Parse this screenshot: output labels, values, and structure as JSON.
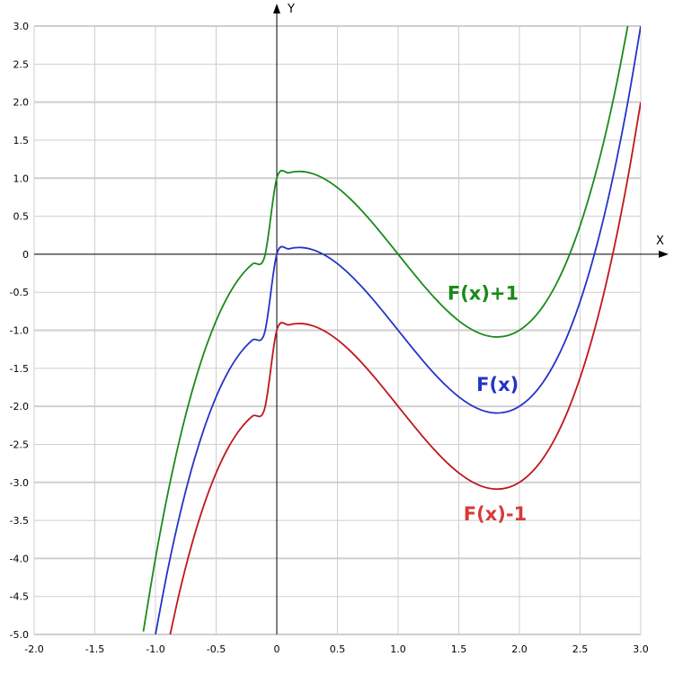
{
  "chart_data": {
    "type": "line",
    "title": "",
    "xlabel": "X",
    "ylabel": "Y",
    "xlim": [
      -2.0,
      3.0
    ],
    "ylim": [
      -5.0,
      3.0
    ],
    "grid": true,
    "x_ticks": [
      -2.0,
      -1.5,
      -1.0,
      -0.5,
      0,
      0.5,
      1.0,
      1.5,
      2.0,
      2.5,
      3.0
    ],
    "x_tick_labels": [
      "-2.0",
      "-1.5",
      "-1.0",
      "-0.5",
      "0",
      "0.5",
      "1.0",
      "1.5",
      "2.0",
      "2.5",
      "3.0"
    ],
    "y_ticks": [
      3.0,
      2.5,
      2.0,
      1.5,
      1.0,
      0.5,
      0,
      -0.5,
      -1.0,
      -1.5,
      -2.0,
      -2.5,
      -3.0,
      -3.5,
      -4.0,
      -4.5,
      -5.0
    ],
    "y_tick_labels": [
      "3.0",
      "2.5",
      "2.0",
      "1.5",
      "1.0",
      "0.5",
      "0",
      "-0.5",
      "-1.0",
      "-1.5",
      "-2.0",
      "-2.5",
      "-3.0",
      "-3.5",
      "-4.0",
      "-4.5",
      "-5.0"
    ],
    "series": [
      {
        "name": "F(x)+1",
        "color": "#1a8a1a",
        "label_color": "#1a8a1a",
        "x": [
          -1.1,
          -1.0,
          -0.9,
          -0.8,
          -0.7,
          -0.6,
          -0.5,
          -0.4,
          -0.3,
          -0.2,
          -0.1,
          0.0,
          0.1,
          0.2,
          0.3,
          0.4,
          0.5,
          0.6,
          0.7,
          0.8,
          0.9,
          1.0,
          1.1,
          1.2,
          1.3,
          1.4,
          1.5,
          1.6,
          1.7,
          1.8,
          1.9,
          2.0,
          2.1,
          2.2,
          2.3,
          2.4,
          2.5,
          2.6,
          2.7,
          2.8,
          2.9
        ],
        "y": [
          -4.961,
          -4.0,
          -3.159,
          -2.432,
          -1.813,
          -1.296,
          -0.875,
          -0.544,
          -0.297,
          -0.128,
          -0.031,
          1.0,
          1.071,
          1.088,
          1.057,
          0.984,
          0.875,
          0.736,
          0.573,
          0.392,
          0.199,
          0.0,
          -0.199,
          -0.392,
          -0.573,
          -0.736,
          -0.875,
          -0.984,
          -1.057,
          -1.088,
          -1.071,
          -1.0,
          -0.869,
          -0.672,
          -0.403,
          -0.056,
          0.375,
          0.896,
          1.513,
          2.232,
          3.059
        ]
      },
      {
        "name": "F(x)",
        "color": "#2433c8",
        "label_color": "#2433c8",
        "x": [
          -1.0,
          -0.9,
          -0.8,
          -0.7,
          -0.6,
          -0.5,
          -0.4,
          -0.3,
          -0.2,
          -0.1,
          0.0,
          0.1,
          0.2,
          0.3,
          0.4,
          0.5,
          0.6,
          0.7,
          0.8,
          0.9,
          1.0,
          1.1,
          1.2,
          1.3,
          1.4,
          1.5,
          1.6,
          1.7,
          1.8,
          1.9,
          2.0,
          2.1,
          2.2,
          2.3,
          2.4,
          2.5,
          2.6,
          2.7,
          2.8,
          2.9,
          3.0
        ],
        "y": [
          -5.0,
          -4.159,
          -3.432,
          -2.813,
          -2.296,
          -1.875,
          -1.544,
          -1.297,
          -1.128,
          -1.031,
          0.0,
          0.071,
          0.088,
          0.057,
          -0.016,
          -0.125,
          -0.264,
          -0.427,
          -0.608,
          -0.801,
          -1.0,
          -1.199,
          -1.392,
          -1.573,
          -1.736,
          -1.875,
          -1.984,
          -2.057,
          -2.088,
          -2.071,
          -2.0,
          -1.869,
          -1.672,
          -1.403,
          -1.056,
          -0.625,
          -0.104,
          0.513,
          1.232,
          2.059,
          3.0
        ]
      },
      {
        "name": "F(x)-1",
        "color": "#c0161c",
        "label_color": "#d63a3a",
        "x": [
          -0.9,
          -0.8,
          -0.7,
          -0.6,
          -0.5,
          -0.4,
          -0.3,
          -0.2,
          -0.1,
          0.0,
          0.1,
          0.2,
          0.3,
          0.4,
          0.5,
          0.6,
          0.7,
          0.8,
          0.9,
          1.0,
          1.1,
          1.2,
          1.3,
          1.4,
          1.5,
          1.6,
          1.7,
          1.8,
          1.9,
          2.0,
          2.1,
          2.2,
          2.3,
          2.4,
          2.5,
          2.6,
          2.7,
          2.8,
          2.9,
          3.0
        ],
        "y": [
          -5.159,
          -4.432,
          -3.813,
          -3.296,
          -2.875,
          -2.544,
          -2.297,
          -2.128,
          -2.031,
          -1.0,
          -0.929,
          -0.912,
          -0.943,
          -1.016,
          -1.125,
          -1.264,
          -1.427,
          -1.608,
          -1.801,
          -2.0,
          -2.199,
          -2.392,
          -2.573,
          -2.736,
          -2.875,
          -2.984,
          -3.057,
          -3.088,
          -3.071,
          -3.0,
          -2.869,
          -2.672,
          -2.403,
          -2.056,
          -1.625,
          -1.104,
          -0.487,
          0.232,
          1.059,
          2.0
        ]
      }
    ],
    "annotations": [
      {
        "text": "F(x)+1",
        "series": 0,
        "x": 1.7,
        "y": -0.6
      },
      {
        "text": "F(x)",
        "series": 1,
        "x": 1.82,
        "y": -1.8
      },
      {
        "text": "F(x)-1",
        "series": 2,
        "x": 1.8,
        "y": -3.5
      }
    ]
  }
}
